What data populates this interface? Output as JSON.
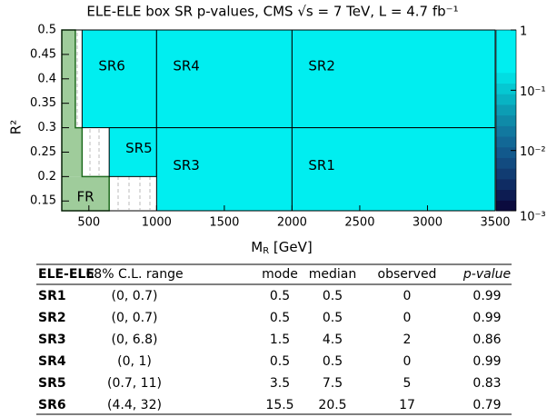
{
  "chart_data": {
    "type": "region_map",
    "title": "ELE-ELE box SR p-values, CMS √s = 7 TeV, L = 4.7 fb⁻¹",
    "xlabel": [
      "M",
      "R",
      " [GeV]"
    ],
    "ylabel": "R²",
    "xlim": [
      300,
      3500
    ],
    "ylim": [
      0.13,
      0.5
    ],
    "xticks": [
      500,
      1000,
      1500,
      2000,
      2500,
      3000,
      3500
    ],
    "yticks": [
      0.15,
      0.2,
      0.25,
      0.3,
      0.35,
      0.4,
      0.45,
      0.5
    ],
    "zlim": [
      0.001,
      1
    ],
    "zlog": true,
    "zticks": [
      {
        "value": 0.001,
        "label": "10⁻³"
      },
      {
        "value": 0.01,
        "label": "10⁻²"
      },
      {
        "value": 0.1,
        "label": "10⁻¹"
      },
      1
    ],
    "palette": [
      "#0b0b3e",
      "#0d1c52",
      "#0f2c63",
      "#113c72",
      "#124b80",
      "#12598c",
      "#126896",
      "#11789f",
      "#0f8aa8",
      "#0c9db4",
      "#08b3c3",
      "#05c8d2",
      "#02dde2",
      "#00eef0",
      "#00eef0",
      "#00eef0",
      "#00eef0"
    ],
    "region_color": "#00eef0",
    "fr_color": "#9fcc9b",
    "regions": [
      {
        "name": "SR6",
        "x": [
          450,
          1000
        ],
        "y": [
          0.3,
          0.5
        ]
      },
      {
        "name": "SR4",
        "x": [
          1000,
          2000
        ],
        "y": [
          0.3,
          0.5
        ]
      },
      {
        "name": "SR2",
        "x": [
          2000,
          3500
        ],
        "y": [
          0.3,
          0.5
        ]
      },
      {
        "name": "SR5",
        "x": [
          650,
          1000
        ],
        "y": [
          0.2,
          0.3
        ]
      },
      {
        "name": "SR3",
        "x": [
          1000,
          2000
        ],
        "y": [
          0.13,
          0.3
        ]
      },
      {
        "name": "SR1",
        "x": [
          2000,
          3500
        ],
        "y": [
          0.13,
          0.3
        ]
      }
    ],
    "fr": {
      "name": "FR",
      "boxes": [
        [
          300,
          400,
          0.3,
          0.5
        ],
        [
          300,
          450,
          0.2,
          0.3
        ],
        [
          300,
          650,
          0.13,
          0.2
        ]
      ]
    }
  },
  "table": {
    "header": [
      "ELE-ELE",
      "68% C.L. range",
      "mode",
      "median",
      "observed",
      "p-value"
    ],
    "rows": [
      [
        "SR1",
        "(0, 0.7)",
        "0.5",
        "0.5",
        "0",
        "0.99"
      ],
      [
        "SR2",
        "(0, 0.7)",
        "0.5",
        "0.5",
        "0",
        "0.99"
      ],
      [
        "SR3",
        "(0, 6.8)",
        "1.5",
        "4.5",
        "2",
        "0.86"
      ],
      [
        "SR4",
        "(0, 1)",
        "0.5",
        "0.5",
        "0",
        "0.99"
      ],
      [
        "SR5",
        "(0.7, 11)",
        "3.5",
        "7.5",
        "5",
        "0.83"
      ],
      [
        "SR6",
        "(4.4, 32)",
        "15.5",
        "20.5",
        "17",
        "0.79"
      ]
    ]
  }
}
